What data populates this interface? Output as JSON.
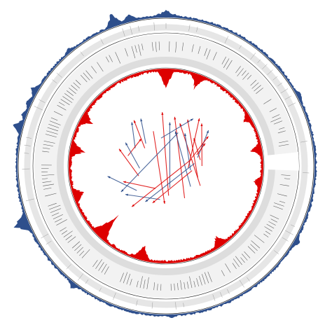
{
  "figure": {
    "colors": {
      "outer_track": "#2e4f8c",
      "inner_track": "#dd0000",
      "ring_gray": "#dddddd",
      "label_ink": "#555555",
      "link_blue": "#2e4f8c",
      "link_red": "#dd0000",
      "circle_line": "#222222"
    }
  },
  "chart_data": {
    "type": "circular",
    "outer_track_peaks_deg": [
      {
        "angle": -75,
        "height": 16
      },
      {
        "angle": -70,
        "height": 9
      },
      {
        "angle": -65,
        "height": 10
      },
      {
        "angle": -20,
        "height": 22
      },
      {
        "angle": -14,
        "height": 14
      },
      {
        "angle": -3,
        "height": 7
      },
      {
        "angle": 0,
        "height": 14
      },
      {
        "angle": 3,
        "height": 7
      },
      {
        "angle": 62,
        "height": 9
      },
      {
        "angle": 120,
        "height": 10
      },
      {
        "angle": 178,
        "height": 6
      },
      {
        "angle": 218,
        "height": 10
      },
      {
        "angle": 248,
        "height": 28
      },
      {
        "angle": 300,
        "height": 12
      },
      {
        "angle": 320,
        "height": 8
      }
    ],
    "inner_track_peaks_deg": [
      {
        "angle": 0,
        "height": 38
      },
      {
        "angle": 20,
        "height": 24
      },
      {
        "angle": 60,
        "height": 14
      },
      {
        "angle": 80,
        "height": 18
      },
      {
        "angle": 100,
        "height": 14
      },
      {
        "angle": 145,
        "height": 20
      },
      {
        "angle": 195,
        "height": 28
      },
      {
        "angle": 224,
        "height": 46
      },
      {
        "angle": 252,
        "height": 20
      },
      {
        "angle": 280,
        "height": 26
      },
      {
        "angle": 300,
        "height": 20
      }
    ],
    "links": [
      {
        "from": 332,
        "to": 318,
        "color": "blue"
      },
      {
        "from": 325,
        "to": 310,
        "color": "red"
      },
      {
        "from": 322,
        "to": 300,
        "color": "blue"
      },
      {
        "from": 318,
        "to": 285,
        "color": "red"
      },
      {
        "from": 300,
        "to": 265,
        "color": "blue"
      },
      {
        "from": 290,
        "to": 250,
        "color": "red"
      },
      {
        "from": 260,
        "to": 230,
        "color": "blue"
      },
      {
        "from": 250,
        "to": 205,
        "color": "red"
      },
      {
        "from": 235,
        "to": 190,
        "color": "blue"
      },
      {
        "from": 356,
        "to": 175,
        "color": "red"
      },
      {
        "from": 5,
        "to": 170,
        "color": "blue"
      },
      {
        "from": 10,
        "to": 150,
        "color": "red"
      },
      {
        "from": 15,
        "to": 130,
        "color": "blue"
      },
      {
        "from": 18,
        "to": 120,
        "color": "red"
      },
      {
        "from": 25,
        "to": 110,
        "color": "red"
      },
      {
        "from": 30,
        "to": 100,
        "color": "blue"
      },
      {
        "from": 35,
        "to": 95,
        "color": "red"
      },
      {
        "from": 40,
        "to": 90,
        "color": "red"
      },
      {
        "from": 45,
        "to": 80,
        "color": "red"
      },
      {
        "from": 50,
        "to": 75,
        "color": "blue"
      },
      {
        "from": 55,
        "to": 72,
        "color": "red"
      },
      {
        "from": 60,
        "to": 70,
        "color": "red"
      },
      {
        "from": 200,
        "to": 100,
        "color": "red"
      },
      {
        "from": 210,
        "to": 85,
        "color": "blue"
      },
      {
        "from": 220,
        "to": 75,
        "color": "red"
      },
      {
        "from": 182,
        "to": 340,
        "color": "red"
      },
      {
        "from": 240,
        "to": 20,
        "color": "blue"
      },
      {
        "from": 30,
        "to": 350,
        "color": "blue"
      }
    ]
  }
}
